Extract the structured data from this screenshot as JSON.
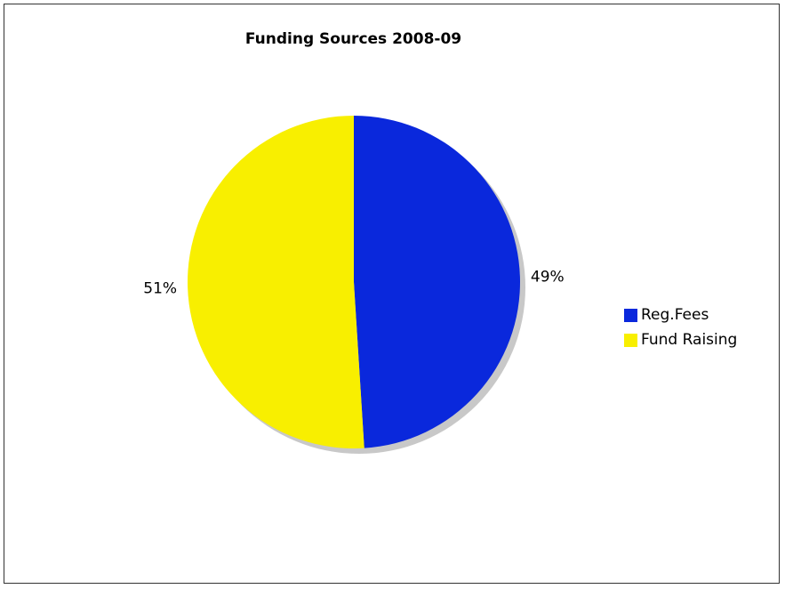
{
  "chart_data": {
    "type": "pie",
    "title": "Funding Sources 2008-09",
    "series": [
      {
        "name": "Reg.Fees",
        "value": 49,
        "label": "49%",
        "color": "#0a28dc"
      },
      {
        "name": "Fund Raising",
        "value": 51,
        "label": "51%",
        "color": "#f8ef00"
      }
    ],
    "legend_position": "right"
  }
}
